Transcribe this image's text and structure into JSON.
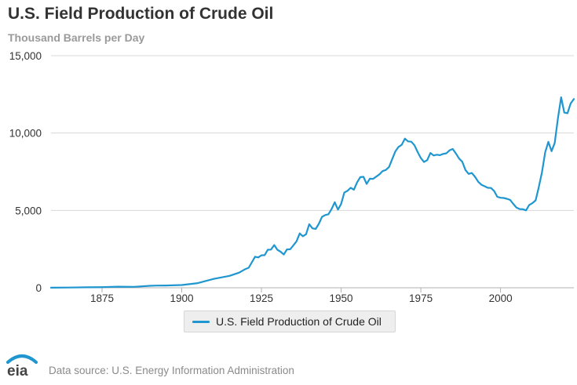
{
  "chart_data": {
    "type": "line",
    "title": "U.S. Field Production of Crude Oil",
    "ylabel": "Thousand Barrels per Day",
    "xlim": [
      1859,
      2023
    ],
    "ylim": [
      0,
      15000
    ],
    "x_ticks": [
      "1875",
      "1900",
      "1925",
      "1950",
      "1975",
      "2000"
    ],
    "y_ticks": [
      "0",
      "5,000",
      "10,000",
      "15,000"
    ],
    "grid": true,
    "legend_position": "bottom-center",
    "series": [
      {
        "name": "U.S. Field Production of Crude Oil",
        "color": "#1f96cf",
        "x": [
          1859,
          1865,
          1870,
          1875,
          1880,
          1885,
          1890,
          1892,
          1895,
          1900,
          1905,
          1910,
          1915,
          1918,
          1920,
          1921,
          1923,
          1924,
          1925,
          1926,
          1927,
          1928,
          1929,
          1930,
          1931,
          1932,
          1933,
          1934,
          1935,
          1936,
          1937,
          1938,
          1939,
          1940,
          1941,
          1942,
          1943,
          1944,
          1945,
          1946,
          1947,
          1948,
          1949,
          1950,
          1951,
          1952,
          1953,
          1954,
          1955,
          1956,
          1957,
          1958,
          1959,
          1960,
          1961,
          1962,
          1963,
          1964,
          1965,
          1966,
          1967,
          1968,
          1969,
          1970,
          1971,
          1972,
          1973,
          1974,
          1975,
          1976,
          1977,
          1978,
          1979,
          1980,
          1981,
          1982,
          1983,
          1984,
          1985,
          1986,
          1987,
          1988,
          1989,
          1990,
          1991,
          1992,
          1993,
          1994,
          1995,
          1996,
          1997,
          1998,
          1999,
          2000,
          2001,
          2002,
          2003,
          2004,
          2005,
          2006,
          2007,
          2008,
          2009,
          2010,
          2011,
          2012,
          2013,
          2014,
          2015,
          2016,
          2017,
          2018,
          2019,
          2020,
          2021,
          2022,
          2023
        ],
        "values": [
          5,
          15,
          30,
          40,
          70,
          60,
          125,
          140,
          145,
          175,
          300,
          575,
          770,
          980,
          1210,
          1290,
          2005,
          1960,
          2100,
          2110,
          2460,
          2470,
          2760,
          2460,
          2330,
          2150,
          2480,
          2490,
          2730,
          3000,
          3510,
          3330,
          3460,
          4110,
          3840,
          3800,
          4130,
          4580,
          4700,
          4750,
          5090,
          5530,
          5050,
          5410,
          6150,
          6270,
          6460,
          6340,
          6810,
          7150,
          7170,
          6710,
          7050,
          7040,
          7180,
          7330,
          7540,
          7610,
          7800,
          8300,
          8810,
          9100,
          9240,
          9640,
          9460,
          9440,
          9210,
          8770,
          8380,
          8130,
          8250,
          8710,
          8550,
          8600,
          8570,
          8650,
          8690,
          8880,
          8970,
          8680,
          8350,
          8140,
          7610,
          7360,
          7420,
          7170,
          6850,
          6660,
          6560,
          6460,
          6450,
          6250,
          5880,
          5820,
          5800,
          5750,
          5680,
          5420,
          5180,
          5090,
          5080,
          5000,
          5350,
          5470,
          5650,
          6500,
          7470,
          8760,
          9430,
          8830,
          9360,
          10950,
          12310,
          11320,
          11280,
          11910,
          12200
        ]
      }
    ]
  },
  "footer": {
    "logo_text": "eia",
    "source": "Data source: U.S. Energy Information Administration"
  }
}
